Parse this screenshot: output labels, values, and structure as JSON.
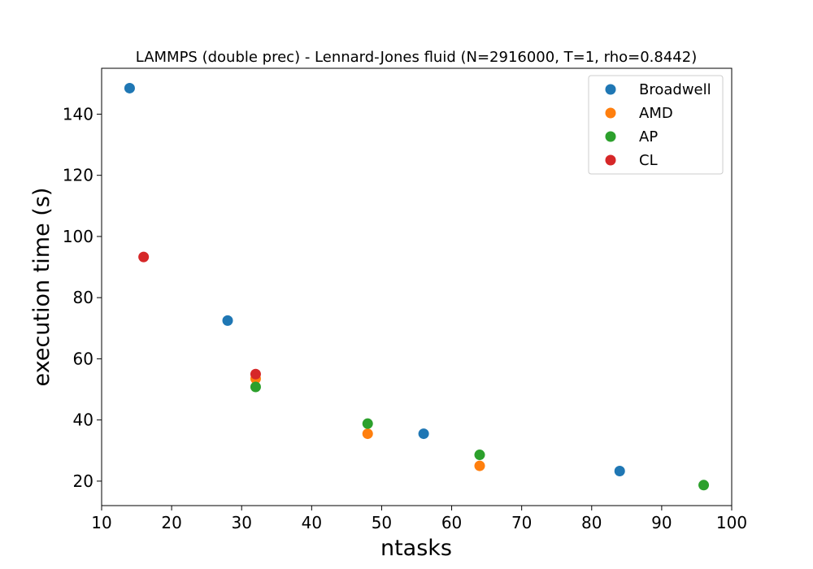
{
  "chart_data": {
    "type": "scatter",
    "title": "LAMMPS (double prec) - Lennard-Jones fluid (N=2916000, T=1, rho=0.8442)",
    "xlabel": "ntasks",
    "ylabel": "execution time (s)",
    "xlim": [
      10,
      100
    ],
    "ylim": [
      12,
      155
    ],
    "xticks": [
      10,
      20,
      30,
      40,
      50,
      60,
      70,
      80,
      90,
      100
    ],
    "yticks": [
      20,
      40,
      60,
      80,
      100,
      120,
      140
    ],
    "grid": false,
    "legend_position": "top-right",
    "series": [
      {
        "name": "Broadwell",
        "color": "#1f77b4",
        "points": [
          [
            14,
            148.5
          ],
          [
            28,
            72.5
          ],
          [
            56,
            35.5
          ],
          [
            84,
            23.3
          ]
        ]
      },
      {
        "name": "AMD",
        "color": "#ff7f0e",
        "points": [
          [
            32,
            53.5
          ],
          [
            48,
            35.5
          ],
          [
            64,
            25.0
          ]
        ]
      },
      {
        "name": "AP",
        "color": "#2ca02c",
        "points": [
          [
            32,
            50.8
          ],
          [
            48,
            38.8
          ],
          [
            64,
            28.6
          ],
          [
            96,
            18.7
          ]
        ]
      },
      {
        "name": "CL",
        "color": "#d62728",
        "points": [
          [
            16,
            93.3
          ],
          [
            32,
            55.0
          ]
        ]
      }
    ]
  }
}
